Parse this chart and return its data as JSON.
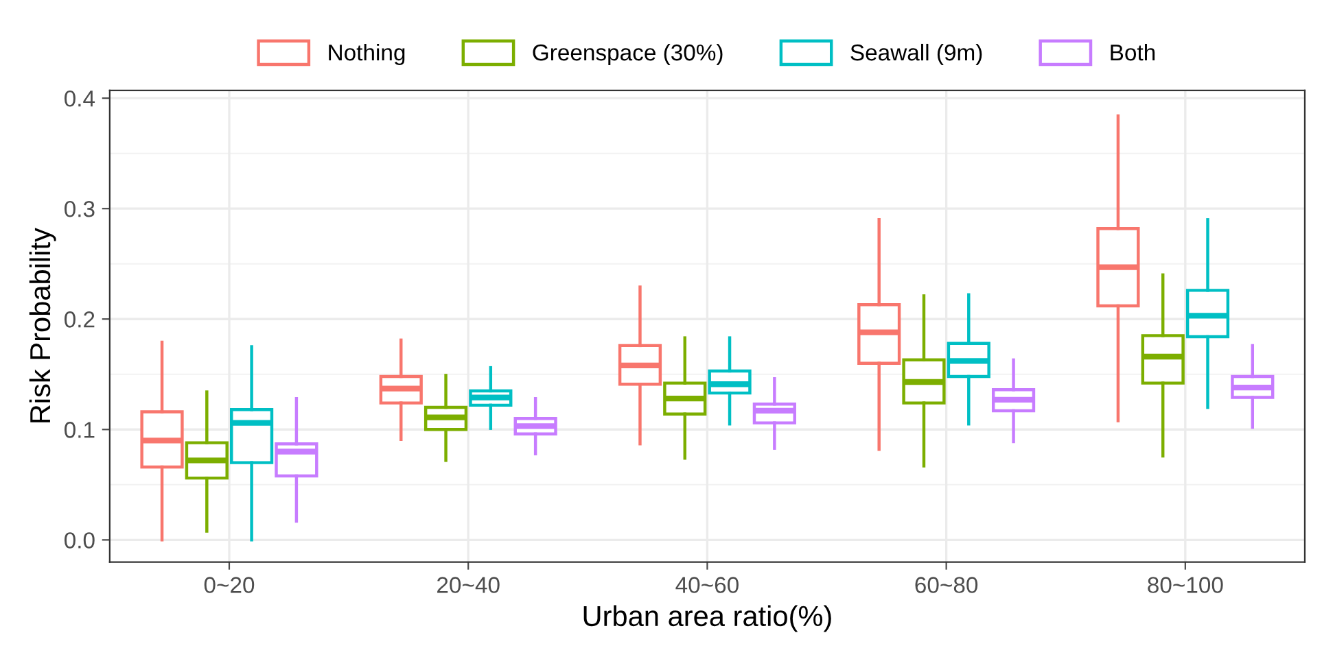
{
  "chart_data": {
    "type": "box",
    "xlabel": "Urban area ratio(%)",
    "ylabel": "Risk Probability",
    "categories": [
      "0~20",
      "20~40",
      "40~60",
      "60~80",
      "80~100"
    ],
    "ylim": [
      -0.02,
      0.407
    ],
    "yticks": [
      {
        "value": 0,
        "label": "0.0"
      },
      0.1,
      0.2,
      0.3,
      0.4
    ],
    "grid": true,
    "legend": "top",
    "series": [
      {
        "name": "Nothing",
        "color": "#f8766d",
        "boxes": [
          {
            "low": 0.0,
            "q1": 0.066,
            "median": 0.09,
            "q3": 0.116,
            "high": 0.179
          },
          {
            "low": 0.091,
            "q1": 0.124,
            "median": 0.137,
            "q3": 0.148,
            "high": 0.181
          },
          {
            "low": 0.087,
            "q1": 0.141,
            "median": 0.158,
            "q3": 0.176,
            "high": 0.229
          },
          {
            "low": 0.082,
            "q1": 0.16,
            "median": 0.188,
            "q3": 0.213,
            "high": 0.29
          },
          {
            "low": 0.108,
            "q1": 0.212,
            "median": 0.247,
            "q3": 0.282,
            "high": 0.384
          }
        ]
      },
      {
        "name": "Greenspace (30%)",
        "color": "#7cae00",
        "boxes": [
          {
            "low": 0.008,
            "q1": 0.056,
            "median": 0.072,
            "q3": 0.088,
            "high": 0.134
          },
          {
            "low": 0.072,
            "q1": 0.1,
            "median": 0.111,
            "q3": 0.12,
            "high": 0.149
          },
          {
            "low": 0.074,
            "q1": 0.114,
            "median": 0.128,
            "q3": 0.142,
            "high": 0.183
          },
          {
            "low": 0.067,
            "q1": 0.124,
            "median": 0.143,
            "q3": 0.163,
            "high": 0.221
          },
          {
            "low": 0.076,
            "q1": 0.142,
            "median": 0.166,
            "q3": 0.185,
            "high": 0.24
          }
        ]
      },
      {
        "name": "Seawall (9m)",
        "color": "#00bfc4",
        "boxes": [
          {
            "low": 0.0,
            "q1": 0.07,
            "median": 0.106,
            "q3": 0.118,
            "high": 0.175
          },
          {
            "low": 0.101,
            "q1": 0.122,
            "median": 0.129,
            "q3": 0.135,
            "high": 0.156
          },
          {
            "low": 0.105,
            "q1": 0.133,
            "median": 0.141,
            "q3": 0.153,
            "high": 0.183
          },
          {
            "low": 0.105,
            "q1": 0.148,
            "median": 0.162,
            "q3": 0.178,
            "high": 0.222
          },
          {
            "low": 0.12,
            "q1": 0.184,
            "median": 0.203,
            "q3": 0.226,
            "high": 0.29
          }
        ]
      },
      {
        "name": "Both",
        "color": "#c77cff",
        "boxes": [
          {
            "low": 0.017,
            "q1": 0.058,
            "median": 0.08,
            "q3": 0.087,
            "high": 0.128
          },
          {
            "low": 0.078,
            "q1": 0.096,
            "median": 0.103,
            "q3": 0.11,
            "high": 0.128
          },
          {
            "low": 0.083,
            "q1": 0.106,
            "median": 0.117,
            "q3": 0.123,
            "high": 0.146
          },
          {
            "low": 0.089,
            "q1": 0.117,
            "median": 0.127,
            "q3": 0.136,
            "high": 0.163
          },
          {
            "low": 0.102,
            "q1": 0.129,
            "median": 0.138,
            "q3": 0.148,
            "high": 0.176
          }
        ]
      }
    ]
  }
}
